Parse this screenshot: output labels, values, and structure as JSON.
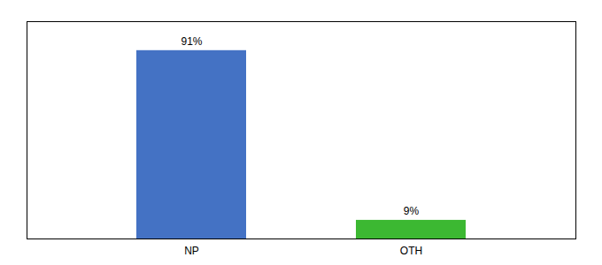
{
  "chart_data": {
    "type": "bar",
    "categories": [
      "NP",
      "OTH"
    ],
    "values": [
      91,
      9
    ],
    "value_labels": [
      "91%",
      "9%"
    ],
    "colors": [
      "#4472c4",
      "#3cb832"
    ],
    "ylim": [
      0,
      105
    ],
    "yticks": [],
    "data_labels": true,
    "tick_labels": "x"
  }
}
